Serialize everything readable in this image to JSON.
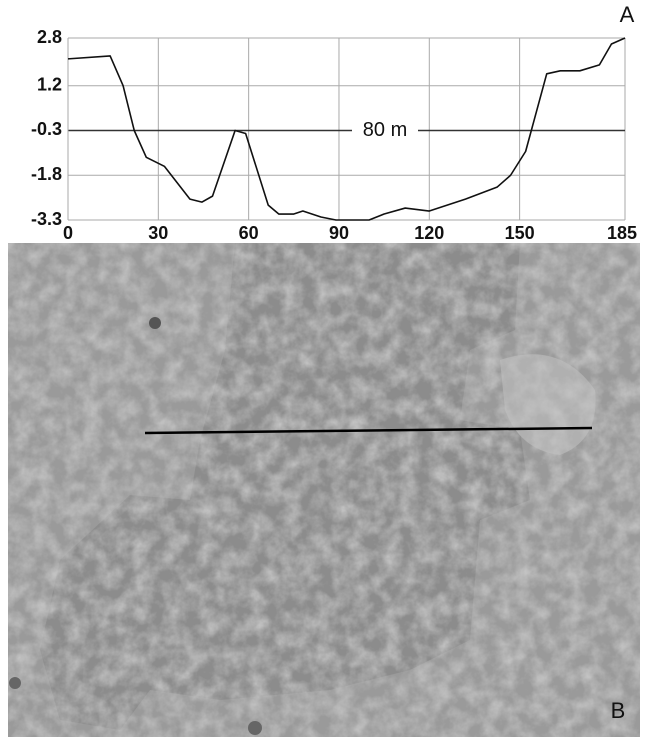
{
  "chart_data": {
    "type": "line",
    "panel_label": "A",
    "annotation": "80 m",
    "x": [
      0,
      14,
      18.3,
      22,
      26,
      32,
      40.5,
      44.5,
      48,
      55.5,
      59,
      66.5,
      70,
      75,
      78,
      84,
      89,
      100,
      105,
      112,
      120,
      132,
      142.5,
      147,
      152,
      159,
      163.5,
      170,
      176.5,
      180.5,
      185
    ],
    "series": [
      {
        "color": "#111111",
        "values": [
          2.1,
          2.2,
          1.2,
          -0.3,
          -1.2,
          -1.5,
          -2.6,
          -2.7,
          -2.5,
          -0.3,
          -0.4,
          -2.8,
          -3.1,
          -3.1,
          -3.0,
          -3.2,
          -3.3,
          -3.3,
          -3.1,
          -2.9,
          -3.0,
          -2.6,
          -2.2,
          -1.8,
          -1.0,
          1.6,
          1.7,
          1.7,
          1.9,
          2.6,
          2.8
        ]
      }
    ],
    "xlim": [
      0,
      185
    ],
    "xticks": [
      0,
      30,
      60,
      90,
      120,
      150,
      185
    ],
    "ylim": [
      -3.3,
      2.8
    ],
    "yticks": [
      2.8,
      1.2,
      -0.3,
      -1.8,
      -3.3
    ],
    "reference_y": -0.3,
    "grid": true
  },
  "image_panel": {
    "label": "B"
  }
}
